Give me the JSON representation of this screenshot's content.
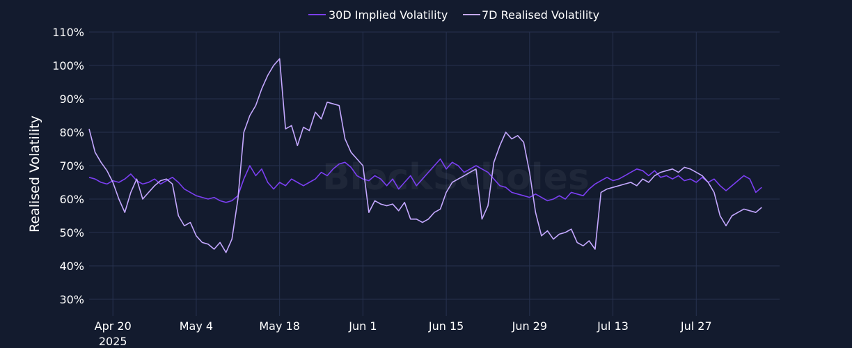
{
  "colors": {
    "background": "#131b2e",
    "grid": "#27324f",
    "text": "#ffffff"
  },
  "watermark": "BlockScholes",
  "chart_data": {
    "type": "line",
    "title": "",
    "ylabel": "Realised Volatility",
    "xlabel": "",
    "ylim": [
      25,
      110
    ],
    "y_unit": "%",
    "yticks": [
      30,
      40,
      50,
      60,
      70,
      80,
      90,
      100,
      110
    ],
    "ytick_labels": [
      "30%",
      "40%",
      "50%",
      "60%",
      "70%",
      "80%",
      "90%",
      "100%",
      "110%"
    ],
    "xlim": [
      "2025-04-16",
      "2025-08-10"
    ],
    "xticks": [
      "2025-04-20",
      "2025-05-04",
      "2025-05-18",
      "2025-06-01",
      "2025-06-15",
      "2025-06-29",
      "2025-07-13",
      "2025-07-27"
    ],
    "xtick_labels": [
      "Apr 20",
      "May 4",
      "May 18",
      "Jun 1",
      "Jun 15",
      "Jun 29",
      "Jul 13",
      "Jul 27"
    ],
    "xtick_sublabel": "2025",
    "grid": true,
    "legend_position": "top-center",
    "series": [
      {
        "name": "30D Implied Volatility",
        "color": "#7b3ff2",
        "points": [
          [
            "2025-04-16",
            66.5
          ],
          [
            "2025-04-17",
            66
          ],
          [
            "2025-04-18",
            65
          ],
          [
            "2025-04-19",
            64.5
          ],
          [
            "2025-04-20",
            65.5
          ],
          [
            "2025-04-21",
            65
          ],
          [
            "2025-04-22",
            66
          ],
          [
            "2025-04-23",
            67.5
          ],
          [
            "2025-04-24",
            65.5
          ],
          [
            "2025-04-25",
            64.5
          ],
          [
            "2025-04-26",
            65
          ],
          [
            "2025-04-27",
            66
          ],
          [
            "2025-04-28",
            64.5
          ],
          [
            "2025-04-29",
            65.5
          ],
          [
            "2025-04-30",
            66.5
          ],
          [
            "2025-05-01",
            65
          ],
          [
            "2025-05-02",
            63
          ],
          [
            "2025-05-03",
            62
          ],
          [
            "2025-05-04",
            61
          ],
          [
            "2025-05-05",
            60.5
          ],
          [
            "2025-05-06",
            60
          ],
          [
            "2025-05-07",
            60.5
          ],
          [
            "2025-05-08",
            59.5
          ],
          [
            "2025-05-09",
            59
          ],
          [
            "2025-05-10",
            59.5
          ],
          [
            "2025-05-11",
            61
          ],
          [
            "2025-05-12",
            66
          ],
          [
            "2025-05-13",
            70
          ],
          [
            "2025-05-14",
            67
          ],
          [
            "2025-05-15",
            69
          ],
          [
            "2025-05-16",
            65
          ],
          [
            "2025-05-17",
            63
          ],
          [
            "2025-05-18",
            65
          ],
          [
            "2025-05-19",
            64
          ],
          [
            "2025-05-20",
            66
          ],
          [
            "2025-05-21",
            65
          ],
          [
            "2025-05-22",
            64
          ],
          [
            "2025-05-23",
            65
          ],
          [
            "2025-05-24",
            66
          ],
          [
            "2025-05-25",
            68
          ],
          [
            "2025-05-26",
            67
          ],
          [
            "2025-05-27",
            69
          ],
          [
            "2025-05-28",
            70.5
          ],
          [
            "2025-05-29",
            71
          ],
          [
            "2025-05-30",
            69.5
          ],
          [
            "2025-05-31",
            67
          ],
          [
            "2025-06-01",
            66
          ],
          [
            "2025-06-02",
            65.5
          ],
          [
            "2025-06-03",
            67
          ],
          [
            "2025-06-04",
            66
          ],
          [
            "2025-06-05",
            64
          ],
          [
            "2025-06-06",
            66
          ],
          [
            "2025-06-07",
            63
          ],
          [
            "2025-06-08",
            65
          ],
          [
            "2025-06-09",
            67
          ],
          [
            "2025-06-10",
            64
          ],
          [
            "2025-06-11",
            66
          ],
          [
            "2025-06-12",
            68
          ],
          [
            "2025-06-13",
            70
          ],
          [
            "2025-06-14",
            72
          ],
          [
            "2025-06-15",
            69
          ],
          [
            "2025-06-16",
            71
          ],
          [
            "2025-06-17",
            70
          ],
          [
            "2025-06-18",
            68
          ],
          [
            "2025-06-19",
            69
          ],
          [
            "2025-06-20",
            70
          ],
          [
            "2025-06-21",
            69
          ],
          [
            "2025-06-22",
            68
          ],
          [
            "2025-06-23",
            66
          ],
          [
            "2025-06-24",
            64
          ],
          [
            "2025-06-25",
            63.5
          ],
          [
            "2025-06-26",
            62
          ],
          [
            "2025-06-27",
            61.5
          ],
          [
            "2025-06-28",
            61
          ],
          [
            "2025-06-29",
            60.5
          ],
          [
            "2025-06-30",
            61.5
          ],
          [
            "2025-07-01",
            60.5
          ],
          [
            "2025-07-02",
            59.5
          ],
          [
            "2025-07-03",
            60
          ],
          [
            "2025-07-04",
            61
          ],
          [
            "2025-07-05",
            60
          ],
          [
            "2025-07-06",
            62
          ],
          [
            "2025-07-07",
            61.5
          ],
          [
            "2025-07-08",
            61
          ],
          [
            "2025-07-09",
            63
          ],
          [
            "2025-07-10",
            64.5
          ],
          [
            "2025-07-11",
            65.5
          ],
          [
            "2025-07-12",
            66.5
          ],
          [
            "2025-07-13",
            65.5
          ],
          [
            "2025-07-14",
            66
          ],
          [
            "2025-07-15",
            67
          ],
          [
            "2025-07-16",
            68
          ],
          [
            "2025-07-17",
            69
          ],
          [
            "2025-07-18",
            68.5
          ],
          [
            "2025-07-19",
            67
          ],
          [
            "2025-07-20",
            68.5
          ],
          [
            "2025-07-21",
            66.5
          ],
          [
            "2025-07-22",
            67
          ],
          [
            "2025-07-23",
            66
          ],
          [
            "2025-07-24",
            67
          ],
          [
            "2025-07-25",
            65.5
          ],
          [
            "2025-07-26",
            66
          ],
          [
            "2025-07-27",
            65
          ],
          [
            "2025-07-28",
            66.5
          ],
          [
            "2025-07-29",
            65
          ],
          [
            "2025-07-30",
            66
          ],
          [
            "2025-07-31",
            64
          ],
          [
            "2025-08-01",
            62.5
          ],
          [
            "2025-08-02",
            64
          ],
          [
            "2025-08-03",
            65.5
          ],
          [
            "2025-08-04",
            67
          ],
          [
            "2025-08-05",
            66
          ],
          [
            "2025-08-06",
            62
          ],
          [
            "2025-08-07",
            63.5
          ]
        ]
      },
      {
        "name": "7D Realised Volatility",
        "color": "#c4a8ff",
        "points": [
          [
            "2025-04-16",
            81
          ],
          [
            "2025-04-17",
            74
          ],
          [
            "2025-04-18",
            71
          ],
          [
            "2025-04-19",
            68.5
          ],
          [
            "2025-04-20",
            65
          ],
          [
            "2025-04-21",
            60
          ],
          [
            "2025-04-22",
            56
          ],
          [
            "2025-04-23",
            62
          ],
          [
            "2025-04-24",
            66
          ],
          [
            "2025-04-25",
            60
          ],
          [
            "2025-04-26",
            62
          ],
          [
            "2025-04-27",
            64
          ],
          [
            "2025-04-28",
            65.5
          ],
          [
            "2025-04-29",
            66
          ],
          [
            "2025-04-30",
            64.5
          ],
          [
            "2025-05-01",
            55
          ],
          [
            "2025-05-02",
            52
          ],
          [
            "2025-05-03",
            53
          ],
          [
            "2025-05-04",
            49
          ],
          [
            "2025-05-05",
            47
          ],
          [
            "2025-05-06",
            46.5
          ],
          [
            "2025-05-07",
            45
          ],
          [
            "2025-05-08",
            47
          ],
          [
            "2025-05-09",
            44
          ],
          [
            "2025-05-10",
            48
          ],
          [
            "2025-05-11",
            60
          ],
          [
            "2025-05-12",
            80
          ],
          [
            "2025-05-13",
            85
          ],
          [
            "2025-05-14",
            88
          ],
          [
            "2025-05-15",
            93
          ],
          [
            "2025-05-16",
            97
          ],
          [
            "2025-05-17",
            100
          ],
          [
            "2025-05-18",
            102
          ],
          [
            "2025-05-19",
            81
          ],
          [
            "2025-05-20",
            82
          ],
          [
            "2025-05-21",
            76
          ],
          [
            "2025-05-22",
            81.5
          ],
          [
            "2025-05-23",
            80.5
          ],
          [
            "2025-05-24",
            86
          ],
          [
            "2025-05-25",
            84
          ],
          [
            "2025-05-26",
            89
          ],
          [
            "2025-05-27",
            88.5
          ],
          [
            "2025-05-28",
            88
          ],
          [
            "2025-05-29",
            78
          ],
          [
            "2025-05-30",
            74
          ],
          [
            "2025-05-31",
            72
          ],
          [
            "2025-06-01",
            70
          ],
          [
            "2025-06-02",
            56
          ],
          [
            "2025-06-03",
            59.5
          ],
          [
            "2025-06-04",
            58.5
          ],
          [
            "2025-06-05",
            58
          ],
          [
            "2025-06-06",
            58.5
          ],
          [
            "2025-06-07",
            56.5
          ],
          [
            "2025-06-08",
            59
          ],
          [
            "2025-06-09",
            54
          ],
          [
            "2025-06-10",
            54
          ],
          [
            "2025-06-11",
            53
          ],
          [
            "2025-06-12",
            54
          ],
          [
            "2025-06-13",
            56
          ],
          [
            "2025-06-14",
            57
          ],
          [
            "2025-06-15",
            62
          ],
          [
            "2025-06-16",
            65
          ],
          [
            "2025-06-17",
            66
          ],
          [
            "2025-06-18",
            67
          ],
          [
            "2025-06-19",
            68
          ],
          [
            "2025-06-20",
            69
          ],
          [
            "2025-06-21",
            54
          ],
          [
            "2025-06-22",
            58
          ],
          [
            "2025-06-23",
            71
          ],
          [
            "2025-06-24",
            76
          ],
          [
            "2025-06-25",
            80
          ],
          [
            "2025-06-26",
            78
          ],
          [
            "2025-06-27",
            79
          ],
          [
            "2025-06-28",
            77
          ],
          [
            "2025-06-29",
            68
          ],
          [
            "2025-06-30",
            56
          ],
          [
            "2025-07-01",
            49
          ],
          [
            "2025-07-02",
            50.5
          ],
          [
            "2025-07-03",
            48
          ],
          [
            "2025-07-04",
            49.5
          ],
          [
            "2025-07-05",
            50
          ],
          [
            "2025-07-06",
            51
          ],
          [
            "2025-07-07",
            47
          ],
          [
            "2025-07-08",
            46
          ],
          [
            "2025-07-09",
            47.5
          ],
          [
            "2025-07-10",
            45
          ],
          [
            "2025-07-11",
            62
          ],
          [
            "2025-07-12",
            63
          ],
          [
            "2025-07-13",
            63.5
          ],
          [
            "2025-07-14",
            64
          ],
          [
            "2025-07-15",
            64.5
          ],
          [
            "2025-07-16",
            65
          ],
          [
            "2025-07-17",
            64
          ],
          [
            "2025-07-18",
            66
          ],
          [
            "2025-07-19",
            65
          ],
          [
            "2025-07-20",
            67
          ],
          [
            "2025-07-21",
            68
          ],
          [
            "2025-07-22",
            68.5
          ],
          [
            "2025-07-23",
            69
          ],
          [
            "2025-07-24",
            68
          ],
          [
            "2025-07-25",
            69.5
          ],
          [
            "2025-07-26",
            69
          ],
          [
            "2025-07-27",
            68
          ],
          [
            "2025-07-28",
            67
          ],
          [
            "2025-07-29",
            65
          ],
          [
            "2025-07-30",
            62
          ],
          [
            "2025-07-31",
            55
          ],
          [
            "2025-08-01",
            52
          ],
          [
            "2025-08-02",
            55
          ],
          [
            "2025-08-03",
            56
          ],
          [
            "2025-08-04",
            57
          ],
          [
            "2025-08-05",
            56.5
          ],
          [
            "2025-08-06",
            56
          ],
          [
            "2025-08-07",
            57.5
          ]
        ]
      }
    ]
  }
}
